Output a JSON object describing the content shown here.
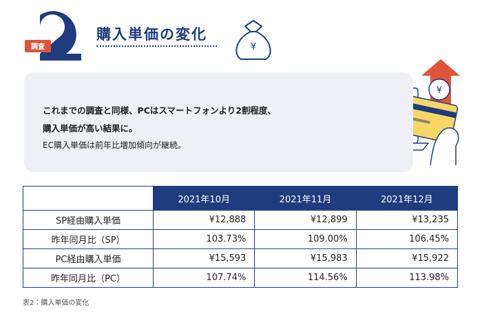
{
  "header": {
    "badge": "調査",
    "title": "購入単価の変化",
    "bag_symbol": "¥"
  },
  "quote": {
    "lines": [
      "これまでの調査と同様、PCはスマートフォンより2割程度、",
      "購入単価が高い結果に。",
      "EC購入単価は前年比増加傾向が継続。"
    ]
  },
  "illustration": {
    "arrow_symbol": "¥"
  },
  "table": {
    "columns": [
      "2021年10月",
      "2021年11月",
      "2021年12月"
    ],
    "rows": [
      [
        "SP経由購入単価",
        "¥12,888",
        "¥12,899",
        "¥13,235"
      ],
      [
        "昨年同月比（SP）",
        "103.73%",
        "109.00%",
        "106.45%"
      ],
      [
        "PC経由購入単価",
        "¥15,593",
        "¥15,983",
        "¥15,922"
      ],
      [
        "昨年同月比（PC）",
        "107.74%",
        "114.56%",
        "113.98%"
      ]
    ]
  },
  "caption": "表2：購入単価の変化"
}
